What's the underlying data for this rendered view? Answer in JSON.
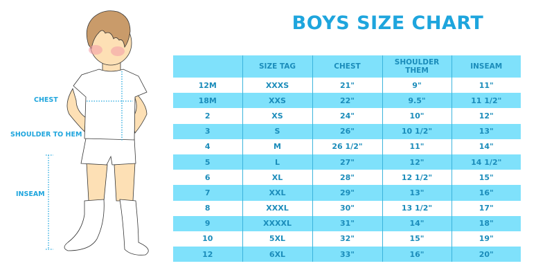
{
  "title": "BOYS SIZE CHART",
  "labels": {
    "chest": "CHEST",
    "shoulder_to_hem": "SHOULDER TO HEM",
    "inseam": "INSEAM"
  },
  "colors": {
    "accent": "#1ea5dd",
    "row_fill": "#7fe1fb",
    "text": "#1b8cba"
  },
  "table": {
    "headers": [
      "",
      "SIZE TAG",
      "CHEST",
      "SHOULDER THEM",
      "INSEAM"
    ],
    "rows": [
      [
        "12M",
        "XXXS",
        "21\"",
        "9\"",
        "11\""
      ],
      [
        "18M",
        "XXS",
        "22\"",
        "9.5\"",
        "11 1/2\""
      ],
      [
        "2",
        "XS",
        "24\"",
        "10\"",
        "12\""
      ],
      [
        "3",
        "S",
        "26\"",
        "10 1/2\"",
        "13\""
      ],
      [
        "4",
        "M",
        "26 1/2\"",
        "11\"",
        "14\""
      ],
      [
        "5",
        "L",
        "27\"",
        "12\"",
        "14 1/2\""
      ],
      [
        "6",
        "XL",
        "28\"",
        "12 1/2\"",
        "15\""
      ],
      [
        "7",
        "XXL",
        "29\"",
        "13\"",
        "16\""
      ],
      [
        "8",
        "XXXL",
        "30\"",
        "13 1/2\"",
        "17\""
      ],
      [
        "9",
        "XXXXL",
        "31\"",
        "14\"",
        "18\""
      ],
      [
        "10",
        "5XL",
        "32\"",
        "15\"",
        "19\""
      ],
      [
        "12",
        "6XL",
        "33\"",
        "16\"",
        "20\""
      ]
    ]
  }
}
